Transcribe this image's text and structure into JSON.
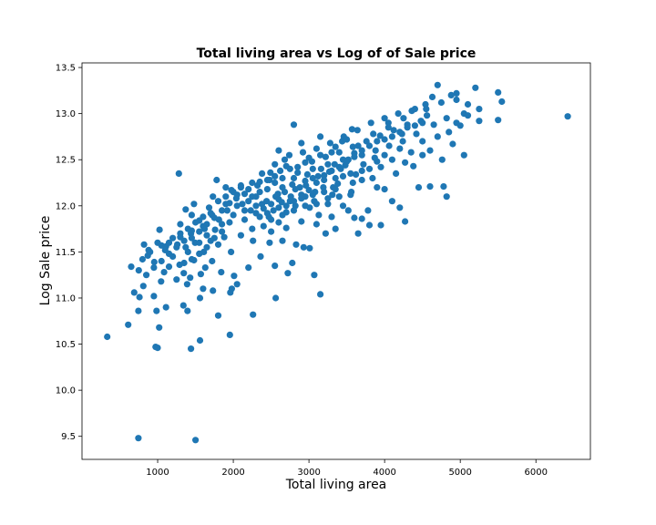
{
  "chart_data": {
    "type": "scatter",
    "title": "Total living area vs Log of of Sale price",
    "xlabel": "Total living area",
    "ylabel": "Log Sale price",
    "xlim": [
      0,
      6720
    ],
    "ylim": [
      9.25,
      13.55
    ],
    "xticks": [
      1000,
      2000,
      3000,
      4000,
      5000,
      6000
    ],
    "yticks": [
      9.5,
      10.0,
      10.5,
      11.0,
      11.5,
      12.0,
      12.5,
      13.0,
      13.5
    ],
    "xtick_labels": [
      "1000",
      "2000",
      "3000",
      "4000",
      "5000",
      "6000"
    ],
    "ytick_labels": [
      "9.5",
      "10.0",
      "10.5",
      "11.0",
      "11.5",
      "12.0",
      "12.5",
      "13.0",
      "13.5"
    ],
    "grid": false,
    "marker_color": "#1f77b4",
    "points": [
      [
        334,
        10.58
      ],
      [
        745,
        9.48
      ],
      [
        1500,
        9.46
      ],
      [
        973,
        10.47
      ],
      [
        1000,
        10.46
      ],
      [
        1440,
        10.45
      ],
      [
        1560,
        10.54
      ],
      [
        1955,
        10.6
      ],
      [
        1020,
        10.68
      ],
      [
        610,
        10.71
      ],
      [
        745,
        10.86
      ],
      [
        985,
        10.86
      ],
      [
        1395,
        10.86
      ],
      [
        1800,
        10.81
      ],
      [
        2260,
        10.82
      ],
      [
        760,
        11.01
      ],
      [
        690,
        11.06
      ],
      [
        950,
        11.02
      ],
      [
        1110,
        10.9
      ],
      [
        1340,
        10.92
      ],
      [
        1560,
        11.0
      ],
      [
        1960,
        11.06
      ],
      [
        1980,
        11.1
      ],
      [
        2560,
        11.0
      ],
      [
        3150,
        11.04
      ],
      [
        2050,
        11.15
      ],
      [
        1600,
        11.1
      ],
      [
        1730,
        11.08
      ],
      [
        1390,
        11.15
      ],
      [
        1250,
        11.2
      ],
      [
        1045,
        11.18
      ],
      [
        810,
        11.13
      ],
      [
        650,
        11.34
      ],
      [
        870,
        11.46
      ],
      [
        955,
        11.39
      ],
      [
        1085,
        11.28
      ],
      [
        1150,
        11.34
      ],
      [
        1290,
        11.36
      ],
      [
        1345,
        11.27
      ],
      [
        1430,
        11.22
      ],
      [
        1480,
        11.41
      ],
      [
        1570,
        11.26
      ],
      [
        1630,
        11.33
      ],
      [
        1720,
        11.4
      ],
      [
        1840,
        11.28
      ],
      [
        2010,
        11.24
      ],
      [
        2200,
        11.33
      ],
      [
        2360,
        11.45
      ],
      [
        2550,
        11.35
      ],
      [
        2720,
        11.27
      ],
      [
        2780,
        11.38
      ],
      [
        3070,
        11.25
      ],
      [
        1970,
        11.5
      ],
      [
        820,
        11.58
      ],
      [
        880,
        11.52
      ],
      [
        1000,
        11.6
      ],
      [
        1025,
        11.74
      ],
      [
        1110,
        11.56
      ],
      [
        1260,
        11.58
      ],
      [
        1370,
        11.55
      ],
      [
        1440,
        11.7
      ],
      [
        1495,
        11.6
      ],
      [
        1610,
        11.5
      ],
      [
        1700,
        11.62
      ],
      [
        1760,
        11.74
      ],
      [
        1880,
        11.66
      ],
      [
        2100,
        11.68
      ],
      [
        2260,
        11.62
      ],
      [
        2480,
        11.6
      ],
      [
        2650,
        11.62
      ],
      [
        2830,
        11.58
      ],
      [
        2930,
        11.55
      ],
      [
        3010,
        11.54
      ],
      [
        3220,
        11.7
      ],
      [
        3350,
        11.75
      ],
      [
        3650,
        11.7
      ],
      [
        3800,
        11.79
      ],
      [
        3950,
        11.79
      ],
      [
        4270,
        11.83
      ],
      [
        1300,
        11.8
      ],
      [
        1370,
        11.96
      ],
      [
        1450,
        11.9
      ],
      [
        1480,
        12.02
      ],
      [
        1550,
        11.84
      ],
      [
        1620,
        11.75
      ],
      [
        1680,
        11.98
      ],
      [
        1730,
        12.1
      ],
      [
        1780,
        12.28
      ],
      [
        1810,
        11.85
      ],
      [
        1920,
        11.95
      ],
      [
        1975,
        12.17
      ],
      [
        2040,
        12.08
      ],
      [
        2120,
        12.02
      ],
      [
        2230,
        11.95
      ],
      [
        2300,
        12.1
      ],
      [
        2380,
        12.02
      ],
      [
        2470,
        11.88
      ],
      [
        2530,
        11.95
      ],
      [
        2590,
        12.13
      ],
      [
        2640,
        12.04
      ],
      [
        2700,
        11.93
      ],
      [
        2760,
        12.1
      ],
      [
        2820,
        12.0
      ],
      [
        2880,
        12.2
      ],
      [
        2950,
        12.1
      ],
      [
        3010,
        11.98
      ],
      [
        3070,
        12.05
      ],
      [
        3130,
        11.9
      ],
      [
        3190,
        12.2
      ],
      [
        3250,
        12.02
      ],
      [
        3310,
        12.12
      ],
      [
        3380,
        12.24
      ],
      [
        3450,
        12.0
      ],
      [
        3520,
        11.95
      ],
      [
        3560,
        12.15
      ],
      [
        3600,
        11.87
      ],
      [
        3700,
        11.86
      ],
      [
        3780,
        11.95
      ],
      [
        3900,
        12.2
      ],
      [
        4100,
        12.05
      ],
      [
        4200,
        11.98
      ],
      [
        2250,
        12.25
      ],
      [
        2380,
        12.35
      ],
      [
        2480,
        12.28
      ],
      [
        2550,
        12.45
      ],
      [
        2620,
        12.38
      ],
      [
        2680,
        12.5
      ],
      [
        2740,
        12.55
      ],
      [
        2800,
        12.3
      ],
      [
        2850,
        12.42
      ],
      [
        2920,
        12.58
      ],
      [
        2980,
        12.34
      ],
      [
        3040,
        12.48
      ],
      [
        3100,
        12.62
      ],
      [
        3160,
        12.4
      ],
      [
        3220,
        12.53
      ],
      [
        3280,
        12.68
      ],
      [
        3340,
        12.45
      ],
      [
        3400,
        12.58
      ],
      [
        3460,
        12.75
      ],
      [
        3520,
        12.5
      ],
      [
        3580,
        12.64
      ],
      [
        3640,
        12.82
      ],
      [
        3700,
        12.55
      ],
      [
        3760,
        12.7
      ],
      [
        3820,
        12.9
      ],
      [
        3880,
        12.6
      ],
      [
        3940,
        12.76
      ],
      [
        4000,
        12.95
      ],
      [
        4060,
        12.65
      ],
      [
        4120,
        12.82
      ],
      [
        4180,
        13.0
      ],
      [
        4240,
        12.7
      ],
      [
        4300,
        12.88
      ],
      [
        4360,
        13.03
      ],
      [
        4420,
        12.78
      ],
      [
        4480,
        12.92
      ],
      [
        4540,
        13.1
      ],
      [
        4600,
        12.6
      ],
      [
        4650,
        12.88
      ],
      [
        4700,
        13.31
      ],
      [
        4760,
        12.5
      ],
      [
        4820,
        12.95
      ],
      [
        4880,
        13.2
      ],
      [
        4950,
        13.15
      ],
      [
        5000,
        12.87
      ],
      [
        5050,
        12.55
      ],
      [
        5100,
        13.1
      ],
      [
        5200,
        13.28
      ],
      [
        5250,
        13.05
      ],
      [
        5250,
        12.92
      ],
      [
        5500,
        13.23
      ],
      [
        5550,
        13.13
      ],
      [
        5500,
        12.93
      ],
      [
        6420,
        12.97
      ],
      [
        4450,
        12.2
      ],
      [
        4600,
        12.21
      ],
      [
        4780,
        12.21
      ],
      [
        4820,
        12.1
      ],
      [
        4150,
        12.35
      ],
      [
        4270,
        12.47
      ],
      [
        4500,
        12.55
      ],
      [
        3900,
        12.48
      ],
      [
        3620,
        12.34
      ],
      [
        3700,
        12.28
      ],
      [
        4000,
        12.18
      ],
      [
        4380,
        12.43
      ],
      [
        2800,
        12.88
      ],
      [
        3440,
        12.7
      ],
      [
        3570,
        12.83
      ],
      [
        4900,
        12.67
      ],
      [
        2490,
        12.36
      ],
      [
        2100,
        12.22
      ],
      [
        1900,
        12.2
      ],
      [
        1280,
        12.35
      ],
      [
        2600,
        12.6
      ],
      [
        2700,
        12.43
      ],
      [
        2900,
        12.68
      ],
      [
        3000,
        12.52
      ],
      [
        3150,
        12.75
      ],
      [
        3300,
        12.58
      ],
      [
        3480,
        12.44
      ],
      [
        3600,
        12.57
      ],
      [
        3800,
        12.4
      ],
      [
        4000,
        12.55
      ],
      [
        4200,
        12.62
      ],
      [
        4050,
        12.85
      ],
      [
        3550,
        12.35
      ],
      [
        3350,
        12.3
      ],
      [
        3050,
        12.3
      ],
      [
        2550,
        12.25
      ],
      [
        2450,
        12.18
      ],
      [
        2350,
        12.15
      ],
      [
        2650,
        12.2
      ],
      [
        2780,
        12.23
      ],
      [
        2950,
        12.27
      ],
      [
        3120,
        12.32
      ],
      [
        3270,
        12.37
      ],
      [
        3420,
        12.4
      ],
      [
        3720,
        12.45
      ],
      [
        3870,
        12.52
      ],
      [
        4230,
        12.78
      ],
      [
        4560,
        12.98
      ],
      [
        4630,
        13.18
      ],
      [
        1800,
        11.58
      ],
      [
        1850,
        11.8
      ],
      [
        2150,
        11.85
      ],
      [
        2250,
        11.75
      ],
      [
        2400,
        11.78
      ],
      [
        2500,
        11.72
      ],
      [
        2600,
        11.82
      ],
      [
        2700,
        11.76
      ],
      [
        2900,
        11.83
      ],
      [
        3100,
        11.8
      ],
      [
        3300,
        11.88
      ],
      [
        1650,
        11.68
      ],
      [
        1550,
        11.6
      ],
      [
        1400,
        11.5
      ],
      [
        1200,
        11.45
      ],
      [
        1100,
        11.52
      ],
      [
        1720,
        11.9
      ],
      [
        1900,
        12.02
      ],
      [
        2050,
        12.12
      ],
      [
        2200,
        12.18
      ],
      [
        2320,
        12.22
      ],
      [
        2440,
        12.05
      ],
      [
        2560,
        12.1
      ],
      [
        2680,
        12.15
      ],
      [
        2820,
        12.18
      ],
      [
        2960,
        12.22
      ],
      [
        3080,
        12.15
      ],
      [
        3200,
        12.28
      ],
      [
        3320,
        12.2
      ],
      [
        3450,
        12.32
      ],
      [
        3580,
        12.25
      ],
      [
        3700,
        12.38
      ],
      [
        3840,
        12.3
      ],
      [
        2000,
        11.9
      ],
      [
        2150,
        11.95
      ],
      [
        2300,
        12.0
      ],
      [
        2450,
        11.92
      ],
      [
        2600,
        11.98
      ],
      [
        2750,
        12.05
      ],
      [
        2900,
        12.08
      ],
      [
        3050,
        12.12
      ],
      [
        3200,
        12.15
      ],
      [
        3350,
        12.18
      ],
      [
        1950,
        11.82
      ],
      [
        1850,
        11.72
      ],
      [
        1750,
        11.65
      ],
      [
        1650,
        11.55
      ],
      [
        1550,
        11.48
      ],
      [
        1450,
        11.42
      ],
      [
        1350,
        11.38
      ],
      [
        2350,
        11.88
      ],
      [
        2500,
        11.85
      ],
      [
        2650,
        11.9
      ],
      [
        2800,
        11.95
      ],
      [
        2950,
        12.0
      ],
      [
        3100,
        12.02
      ],
      [
        3250,
        12.08
      ],
      [
        3400,
        12.1
      ],
      [
        3550,
        12.12
      ],
      [
        3950,
        12.42
      ],
      [
        4100,
        12.5
      ],
      [
        4350,
        12.58
      ],
      [
        4500,
        12.7
      ],
      [
        4700,
        12.75
      ],
      [
        4850,
        12.8
      ],
      [
        4950,
        12.9
      ],
      [
        5050,
        13.0
      ],
      [
        4400,
        13.05
      ],
      [
        4250,
        12.95
      ],
      [
        4050,
        12.9
      ],
      [
        3850,
        12.78
      ],
      [
        3650,
        12.65
      ],
      [
        3450,
        12.5
      ],
      [
        3250,
        12.45
      ],
      [
        3050,
        12.4
      ],
      [
        2850,
        12.36
      ],
      [
        2650,
        12.3
      ],
      [
        2450,
        12.28
      ],
      [
        2250,
        12.1
      ],
      [
        2050,
        12.0
      ],
      [
        1850,
        11.95
      ],
      [
        1650,
        11.8
      ],
      [
        1550,
        11.72
      ],
      [
        1450,
        11.65
      ],
      [
        1350,
        11.62
      ],
      [
        1250,
        11.55
      ],
      [
        1150,
        11.48
      ],
      [
        1050,
        11.4
      ],
      [
        950,
        11.33
      ],
      [
        850,
        11.25
      ],
      [
        1200,
        11.65
      ],
      [
        1300,
        11.7
      ],
      [
        1400,
        11.75
      ],
      [
        1500,
        11.82
      ],
      [
        1600,
        11.88
      ],
      [
        1700,
        11.92
      ],
      [
        1800,
        12.05
      ],
      [
        1900,
        12.1
      ],
      [
        2000,
        12.15
      ],
      [
        2100,
        12.2
      ],
      [
        2200,
        12.05
      ],
      [
        2300,
        11.92
      ],
      [
        2400,
        11.97
      ],
      [
        2500,
        12.02
      ],
      [
        2600,
        12.07
      ],
      [
        2700,
        12.0
      ],
      [
        2800,
        12.05
      ],
      [
        2900,
        12.12
      ],
      [
        3000,
        12.17
      ],
      [
        3100,
        12.25
      ],
      [
        3200,
        12.33
      ],
      [
        3300,
        12.38
      ],
      [
        3400,
        12.42
      ],
      [
        3500,
        12.48
      ],
      [
        3600,
        12.53
      ],
      [
        3700,
        12.6
      ],
      [
        3800,
        12.65
      ],
      [
        3900,
        12.7
      ],
      [
        4000,
        12.72
      ],
      [
        4100,
        12.75
      ],
      [
        4200,
        12.8
      ],
      [
        4300,
        12.85
      ],
      [
        4400,
        12.87
      ],
      [
        4500,
        12.9
      ],
      [
        4550,
        13.05
      ],
      [
        4750,
        13.12
      ],
      [
        4950,
        13.22
      ],
      [
        5100,
        12.98
      ],
      [
        3500,
        12.72
      ],
      [
        3350,
        12.64
      ],
      [
        3150,
        12.55
      ],
      [
        2950,
        12.47
      ],
      [
        2750,
        12.4
      ],
      [
        2550,
        12.32
      ],
      [
        2350,
        12.26
      ],
      [
        2150,
        12.13
      ],
      [
        1950,
        12.03
      ],
      [
        1750,
        11.87
      ],
      [
        1600,
        11.78
      ],
      [
        1450,
        11.73
      ],
      [
        1300,
        11.66
      ],
      [
        1150,
        11.6
      ],
      [
        1050,
        11.57
      ],
      [
        900,
        11.5
      ],
      [
        800,
        11.42
      ],
      [
        750,
        11.3
      ]
    ]
  }
}
